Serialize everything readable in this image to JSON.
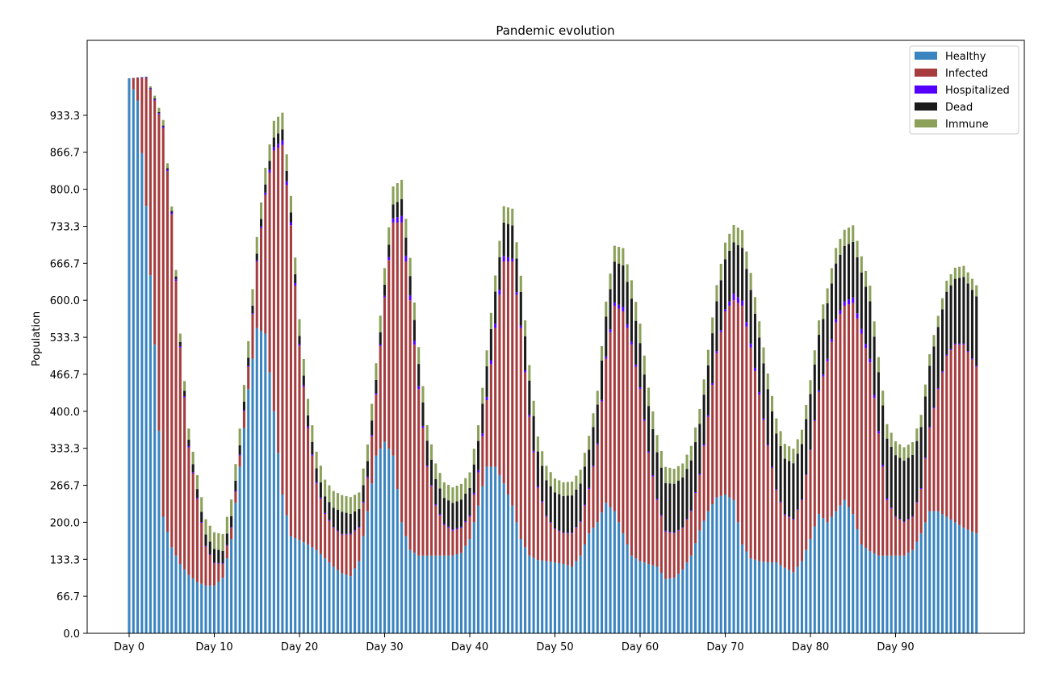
{
  "chart_data": {
    "type": "bar",
    "stacked": true,
    "title": "Pandemic evolution",
    "xlabel": "",
    "ylabel": "Population",
    "ylim": [
      0,
      1000
    ],
    "yticks": [
      "0.0",
      "66.7",
      "133.3",
      "200.0",
      "266.7",
      "333.3",
      "400.0",
      "466.7",
      "533.3",
      "600.0",
      "666.7",
      "733.3",
      "800.0",
      "866.7",
      "933.3"
    ],
    "ytick_values": [
      0,
      66.7,
      133.3,
      200,
      266.7,
      333.3,
      400,
      466.7,
      533.3,
      600,
      666.7,
      733.3,
      800,
      866.7,
      933.3
    ],
    "xticks": [
      "Day 0",
      "Day 10",
      "Day 20",
      "Day 30",
      "Day 40",
      "Day 50",
      "Day 60",
      "Day 70",
      "Day 80",
      "Day 90"
    ],
    "xtick_values": [
      0,
      10,
      20,
      30,
      40,
      50,
      60,
      70,
      80,
      90
    ],
    "bars_per_day": 2,
    "day_range": [
      0,
      99.5
    ],
    "grid": false,
    "legend_position": "top-right",
    "colors": {
      "Healthy": "#3a85c0",
      "Infected": "#a63c3e",
      "Hospitalized": "#5500ff",
      "Dead": "#1a1a1a",
      "Immune": "#8ba15a"
    },
    "series": [
      {
        "name": "Healthy",
        "x": [
          0,
          1,
          2,
          3,
          4,
          5,
          6,
          7,
          8,
          9,
          10,
          11,
          12,
          13,
          14,
          15,
          16,
          17,
          18,
          19,
          20,
          21,
          22,
          23,
          24,
          25,
          26,
          27,
          28,
          29,
          30,
          31,
          32,
          33,
          34,
          35,
          36,
          37,
          38,
          39,
          40,
          41,
          42,
          43,
          44,
          45,
          46,
          47,
          48,
          49,
          50,
          51,
          52,
          53,
          54,
          55,
          56,
          57,
          58,
          59,
          60,
          61,
          62,
          63,
          64,
          65,
          66,
          67,
          68,
          69,
          70,
          71,
          72,
          73,
          74,
          75,
          76,
          77,
          78,
          79,
          80,
          81,
          82,
          83,
          84,
          85,
          86,
          87,
          88,
          89,
          90,
          91,
          92,
          93,
          94,
          95,
          96,
          97,
          98,
          99.5
        ],
        "values": [
          1000,
          960,
          770,
          520,
          210,
          155,
          125,
          105,
          92,
          86,
          86,
          100,
          170,
          300,
          440,
          550,
          540,
          400,
          250,
          175,
          168,
          160,
          150,
          135,
          120,
          108,
          103,
          130,
          220,
          320,
          345,
          320,
          200,
          150,
          140,
          140,
          140,
          140,
          140,
          145,
          170,
          230,
          300,
          300,
          270,
          230,
          170,
          140,
          132,
          130,
          128,
          125,
          120,
          140,
          180,
          200,
          235,
          220,
          180,
          140,
          130,
          125,
          120,
          98,
          100,
          115,
          140,
          185,
          220,
          245,
          250,
          240,
          160,
          135,
          130,
          128,
          128,
          118,
          110,
          130,
          170,
          215,
          200,
          220,
          240,
          215,
          160,
          148,
          140,
          140,
          140,
          140,
          150,
          180,
          220,
          220,
          210,
          200,
          190,
          180
        ]
      },
      {
        "name": "Infected",
        "x": [
          0,
          1,
          2,
          3,
          4,
          5,
          6,
          7,
          8,
          9,
          10,
          11,
          12,
          13,
          14,
          15,
          16,
          17,
          18,
          19,
          20,
          21,
          22,
          23,
          24,
          25,
          26,
          27,
          28,
          29,
          30,
          31,
          32,
          33,
          34,
          35,
          36,
          37,
          38,
          39,
          40,
          41,
          42,
          43,
          44,
          45,
          46,
          47,
          48,
          49,
          50,
          51,
          52,
          53,
          54,
          55,
          56,
          57,
          58,
          59,
          60,
          61,
          62,
          63,
          64,
          65,
          66,
          67,
          68,
          69,
          70,
          71,
          72,
          73,
          74,
          75,
          76,
          77,
          78,
          79,
          80,
          81,
          82,
          83,
          84,
          85,
          86,
          87,
          88,
          89,
          90,
          91,
          92,
          93,
          94,
          95,
          96,
          97,
          98,
          99.5
        ],
        "values": [
          0,
          40,
          230,
          440,
          700,
          600,
          390,
          230,
          150,
          70,
          40,
          25,
          20,
          20,
          40,
          120,
          250,
          470,
          630,
          560,
          350,
          210,
          120,
          80,
          70,
          70,
          75,
          60,
          60,
          110,
          260,
          420,
          540,
          450,
          300,
          160,
          90,
          55,
          45,
          45,
          40,
          60,
          120,
          250,
          400,
          440,
          380,
          250,
          130,
          80,
          60,
          55,
          60,
          60,
          80,
          140,
          260,
          370,
          400,
          380,
          310,
          200,
          120,
          85,
          80,
          75,
          80,
          100,
          170,
          260,
          330,
          360,
          430,
          380,
          300,
          210,
          130,
          95,
          95,
          110,
          160,
          220,
          290,
          340,
          350,
          380,
          380,
          340,
          220,
          100,
          70,
          60,
          60,
          80,
          150,
          220,
          290,
          320,
          330,
          300
        ]
      },
      {
        "name": "Hospitalized",
        "x": [
          0,
          5,
          10,
          15,
          18,
          20,
          25,
          30,
          32,
          35,
          40,
          44,
          45,
          50,
          55,
          58,
          60,
          65,
          70,
          71,
          75,
          80,
          84,
          85,
          90,
          95,
          99.5
        ],
        "values": [
          0,
          3,
          1,
          2,
          8,
          3,
          1,
          3,
          12,
          2,
          2,
          10,
          5,
          1,
          2,
          8,
          3,
          1,
          4,
          12,
          2,
          1,
          8,
          10,
          1,
          2,
          2
        ]
      },
      {
        "name": "Dead",
        "x": [
          0,
          5,
          10,
          15,
          18,
          20,
          25,
          30,
          32,
          35,
          40,
          44,
          45,
          50,
          55,
          58,
          60,
          65,
          70,
          72,
          75,
          80,
          84,
          85,
          90,
          95,
          99.5
        ],
        "values": [
          0,
          3,
          25,
          12,
          20,
          15,
          40,
          20,
          30,
          45,
          50,
          60,
          60,
          65,
          70,
          75,
          80,
          90,
          90,
          95,
          100,
          100,
          100,
          100,
          110,
          110,
          125
        ]
      },
      {
        "name": "Immune",
        "x": [
          0,
          2,
          4,
          5,
          6,
          7,
          8,
          10,
          15,
          20,
          25,
          30,
          32,
          35,
          40,
          45,
          50,
          55,
          60,
          65,
          70,
          72,
          75,
          80,
          85,
          90,
          95,
          99.5
        ],
        "values": [
          0,
          0,
          10,
          8,
          15,
          20,
          25,
          30,
          30,
          30,
          30,
          30,
          35,
          28,
          28,
          30,
          25,
          25,
          35,
          25,
          30,
          32,
          28,
          25,
          30,
          25,
          20,
          20
        ]
      }
    ]
  }
}
